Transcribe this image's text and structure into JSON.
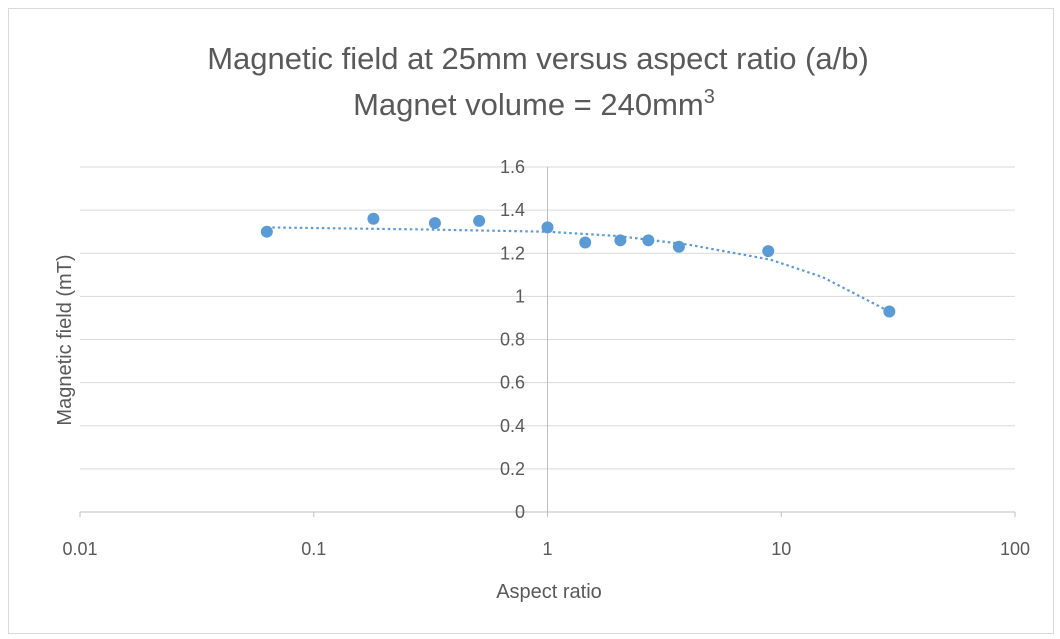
{
  "chart_data": {
    "type": "scatter",
    "title_line1": "Magnetic field at 25mm versus aspect ratio (a/b)",
    "title_line2_prefix": "Magnet volume = 240mm",
    "title_line2_sup": "3",
    "xlabel": "Aspect ratio",
    "ylabel": "Magnetic field (mT)",
    "x_scale": "log",
    "xlim": [
      0.01,
      100
    ],
    "ylim": [
      0,
      1.6
    ],
    "x_ticks": [
      "0.01",
      "0.1",
      "1",
      "10",
      "100"
    ],
    "y_ticks": [
      "0",
      "0.2",
      "0.4",
      "0.6",
      "0.8",
      "1",
      "1.2",
      "1.4",
      "1.6"
    ],
    "grid": "horizontal",
    "marker_color": "#5b9bd5",
    "trendline_color": "#5b9bd5",
    "points": [
      {
        "x": 0.063,
        "y": 1.3
      },
      {
        "x": 0.18,
        "y": 1.36
      },
      {
        "x": 0.33,
        "y": 1.34
      },
      {
        "x": 0.51,
        "y": 1.35
      },
      {
        "x": 1.0,
        "y": 1.32
      },
      {
        "x": 1.45,
        "y": 1.25
      },
      {
        "x": 2.05,
        "y": 1.26
      },
      {
        "x": 2.7,
        "y": 1.26
      },
      {
        "x": 3.65,
        "y": 1.23
      },
      {
        "x": 8.8,
        "y": 1.21
      },
      {
        "x": 29,
        "y": 0.93
      }
    ],
    "trendline": [
      {
        "x": 0.063,
        "y": 1.32
      },
      {
        "x": 0.3,
        "y": 1.31
      },
      {
        "x": 1.0,
        "y": 1.3
      },
      {
        "x": 2.0,
        "y": 1.28
      },
      {
        "x": 4.0,
        "y": 1.24
      },
      {
        "x": 9.0,
        "y": 1.17
      },
      {
        "x": 15,
        "y": 1.09
      },
      {
        "x": 29,
        "y": 0.93
      }
    ]
  }
}
